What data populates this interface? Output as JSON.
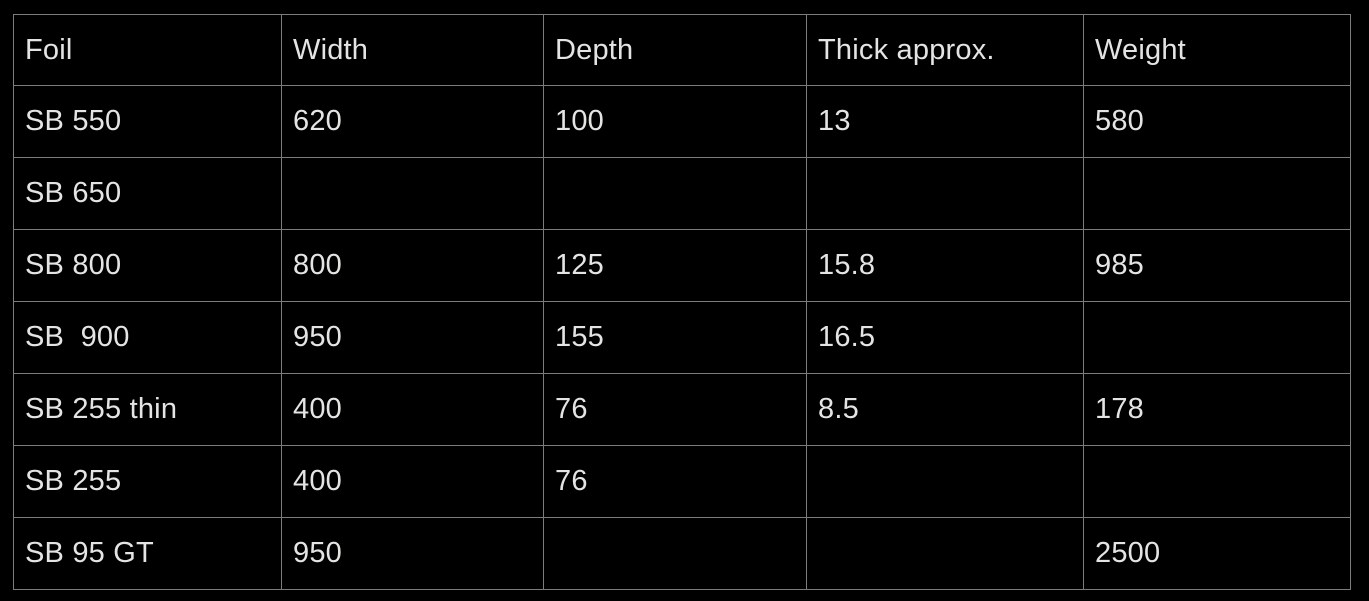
{
  "colors": {
    "background": "#000000",
    "text": "#e4e4e2",
    "border": "#7c7c7c"
  },
  "table": {
    "columns": [
      "Foil",
      "Width",
      "Depth",
      "Thick approx.",
      "Weight"
    ],
    "rows": [
      [
        "SB 550",
        "620",
        "100",
        "13",
        "580"
      ],
      [
        "SB 650",
        "",
        "",
        "",
        ""
      ],
      [
        "SB 800",
        "800",
        "125",
        "15.8",
        "985"
      ],
      [
        "SB  900",
        "950",
        "155",
        "16.5",
        ""
      ],
      [
        "SB 255 thin",
        "400",
        "76",
        "8.5",
        "178"
      ],
      [
        "SB 255",
        "400",
        "76",
        "",
        ""
      ],
      [
        "SB 95 GT",
        "950",
        "",
        "",
        "2500"
      ]
    ]
  }
}
